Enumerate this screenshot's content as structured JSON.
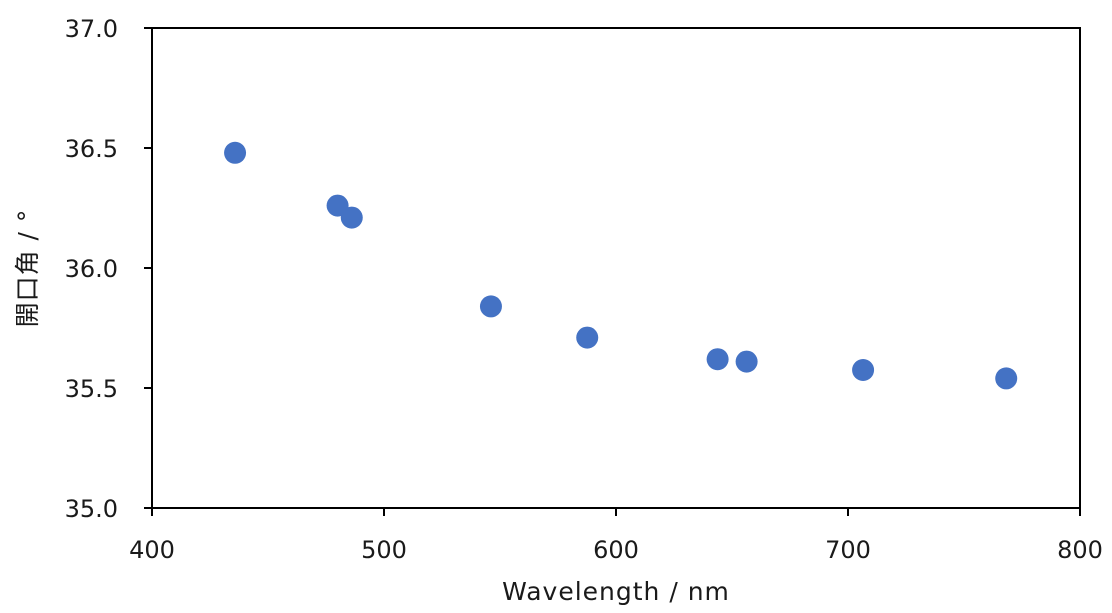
{
  "chart_data": {
    "type": "scatter",
    "xlabel": "Wavelength / nm",
    "ylabel": "開口角 / °",
    "xlim": [
      400,
      800
    ],
    "ylim": [
      35.0,
      37.0
    ],
    "x_ticks": [
      400,
      500,
      600,
      700,
      800
    ],
    "y_ticks": [
      "35.0",
      "35.5",
      "36.0",
      "36.5",
      "37.0"
    ],
    "grid": false,
    "marker_color": "#4472C4",
    "series": [
      {
        "x": [
          435.8,
          480.0,
          486.1,
          546.1,
          587.6,
          643.8,
          656.3,
          706.5,
          768.2
        ],
        "y": [
          36.48,
          36.26,
          36.21,
          35.84,
          35.71,
          35.62,
          35.61,
          35.575,
          35.54
        ]
      }
    ]
  }
}
